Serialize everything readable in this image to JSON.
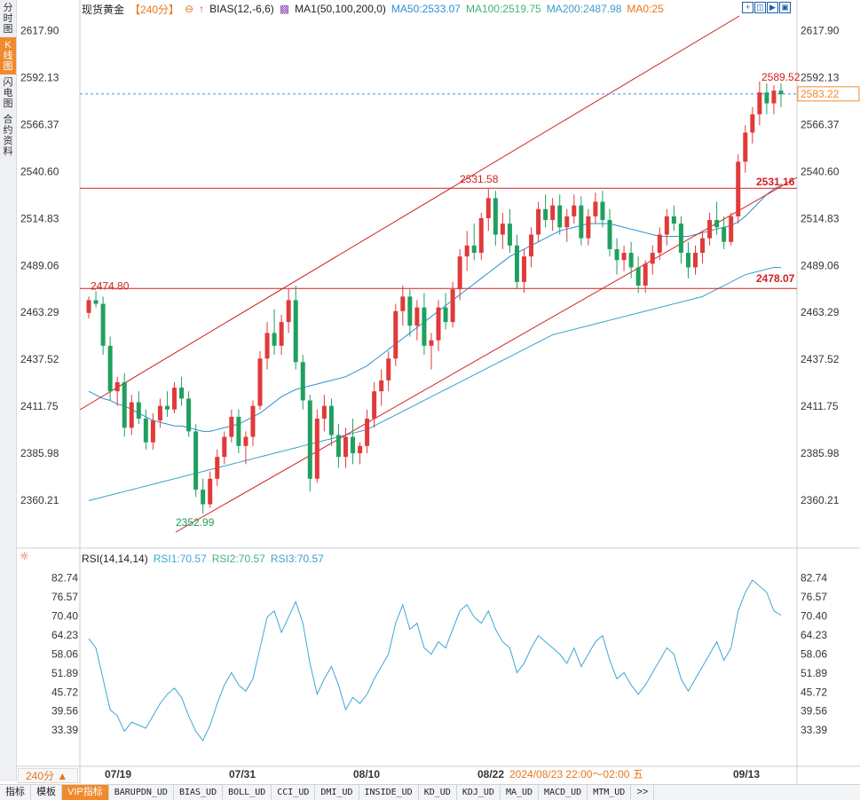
{
  "sidebar": {
    "items": [
      {
        "label": "分时图",
        "active": false
      },
      {
        "label": "K线图",
        "active": true
      },
      {
        "label": "闪电图",
        "active": false
      },
      {
        "label": "合约资料",
        "active": false
      }
    ]
  },
  "header": {
    "instrument": "现货黄金",
    "period_tag": "【240分】",
    "bias_label": "BIAS(12,-6,6)",
    "ma_label": "MA1(50,100,200,0)",
    "ma50": "MA50:2533.07",
    "ma100": "MA100:2519.75",
    "ma200": "MA200:2487.98",
    "ma0": "MA0:25"
  },
  "colors": {
    "up": "#e03a3a",
    "down": "#20a060",
    "ma50": "#2e8fd0",
    "ma100": "#41b37a",
    "ma200": "#3aa0c8",
    "rsi": "#3fa6d6",
    "lines": "#d22020",
    "price": "#f08a2c"
  },
  "axes": {
    "price_ticks": [
      "2617.90",
      "2592.13",
      "2566.37",
      "2540.60",
      "2514.83",
      "2489.06",
      "2463.29",
      "2437.52",
      "2411.75",
      "2385.98",
      "2360.21"
    ],
    "current_price": "2583.22",
    "rsi_ticks": [
      "82.74",
      "76.57",
      "70.40",
      "64.23",
      "58.06",
      "51.89",
      "45.72",
      "39.56",
      "33.39"
    ],
    "date_labels": [
      "07/19",
      "07/31",
      "08/10",
      "08/22",
      "09/13"
    ],
    "crosshair_time": "2024/08/23 22:00～02:00 五"
  },
  "annotations": {
    "high": "2589.52",
    "low": "2352.99",
    "resist1": "2531.58",
    "resist1_right": "2531.16",
    "support_left": "2474.80",
    "support_right": "2478.07"
  },
  "rsi_header": {
    "label": "RSI(14,14,14)",
    "rsi1": "RSI1:70.57",
    "rsi2": "RSI2:70.57",
    "rsi3": "RSI3:70.57"
  },
  "period_selector": "240分 ▲",
  "bottom_tabs": [
    "指标",
    "模板",
    "VIP指标",
    "BARUPDN_UD",
    "BIAS_UD",
    "BOLL_UD",
    "CCI_UD",
    "DMI_UD",
    "INSIDE_UD",
    "KD_UD",
    "KDJ_UD",
    "MA_UD",
    "MACD_UD",
    "MTM_UD",
    ">>"
  ],
  "chart_data": {
    "type": "candlestick",
    "price_range": [
      2350,
      2625
    ],
    "rsi_range": [
      28,
      86
    ],
    "candles": [
      [
        2463,
        2472,
        2460,
        2470
      ],
      [
        2470,
        2475,
        2466,
        2468
      ],
      [
        2468,
        2472,
        2440,
        2445
      ],
      [
        2445,
        2450,
        2415,
        2420
      ],
      [
        2420,
        2428,
        2412,
        2425
      ],
      [
        2425,
        2430,
        2395,
        2400
      ],
      [
        2400,
        2418,
        2396,
        2414
      ],
      [
        2414,
        2420,
        2402,
        2405
      ],
      [
        2405,
        2410,
        2388,
        2392
      ],
      [
        2392,
        2408,
        2388,
        2404
      ],
      [
        2404,
        2416,
        2400,
        2412
      ],
      [
        2412,
        2420,
        2406,
        2410
      ],
      [
        2410,
        2425,
        2408,
        2422
      ],
      [
        2422,
        2428,
        2412,
        2416
      ],
      [
        2416,
        2420,
        2395,
        2398
      ],
      [
        2398,
        2402,
        2362,
        2366
      ],
      [
        2366,
        2372,
        2353,
        2358
      ],
      [
        2358,
        2376,
        2356,
        2372
      ],
      [
        2372,
        2388,
        2368,
        2384
      ],
      [
        2384,
        2398,
        2380,
        2395
      ],
      [
        2395,
        2410,
        2392,
        2406
      ],
      [
        2406,
        2410,
        2386,
        2390
      ],
      [
        2390,
        2398,
        2380,
        2395
      ],
      [
        2395,
        2415,
        2390,
        2412
      ],
      [
        2412,
        2442,
        2410,
        2438
      ],
      [
        2438,
        2458,
        2432,
        2452
      ],
      [
        2452,
        2465,
        2440,
        2445
      ],
      [
        2445,
        2462,
        2440,
        2458
      ],
      [
        2458,
        2476,
        2452,
        2470
      ],
      [
        2470,
        2478,
        2432,
        2436
      ],
      [
        2436,
        2440,
        2410,
        2415
      ],
      [
        2415,
        2418,
        2365,
        2372
      ],
      [
        2372,
        2410,
        2370,
        2405
      ],
      [
        2405,
        2418,
        2398,
        2412
      ],
      [
        2412,
        2416,
        2390,
        2396
      ],
      [
        2396,
        2402,
        2378,
        2384
      ],
      [
        2384,
        2400,
        2378,
        2395
      ],
      [
        2395,
        2405,
        2380,
        2386
      ],
      [
        2386,
        2392,
        2380,
        2390
      ],
      [
        2390,
        2410,
        2386,
        2405
      ],
      [
        2405,
        2425,
        2400,
        2420
      ],
      [
        2420,
        2432,
        2412,
        2426
      ],
      [
        2426,
        2442,
        2420,
        2438
      ],
      [
        2438,
        2468,
        2434,
        2464
      ],
      [
        2464,
        2478,
        2456,
        2472
      ],
      [
        2472,
        2476,
        2450,
        2456
      ],
      [
        2456,
        2470,
        2448,
        2466
      ],
      [
        2466,
        2474,
        2440,
        2445
      ],
      [
        2445,
        2452,
        2432,
        2448
      ],
      [
        2448,
        2470,
        2442,
        2466
      ],
      [
        2466,
        2474,
        2454,
        2458
      ],
      [
        2458,
        2480,
        2455,
        2476
      ],
      [
        2476,
        2498,
        2470,
        2494
      ],
      [
        2494,
        2508,
        2486,
        2500
      ],
      [
        2500,
        2512,
        2492,
        2496
      ],
      [
        2496,
        2518,
        2492,
        2515
      ],
      [
        2515,
        2531,
        2508,
        2526
      ],
      [
        2526,
        2530,
        2500,
        2506
      ],
      [
        2506,
        2518,
        2498,
        2512
      ],
      [
        2512,
        2520,
        2496,
        2500
      ],
      [
        2500,
        2506,
        2476,
        2480
      ],
      [
        2480,
        2498,
        2474,
        2494
      ],
      [
        2494,
        2510,
        2488,
        2506
      ],
      [
        2506,
        2524,
        2502,
        2520
      ],
      [
        2520,
        2528,
        2510,
        2514
      ],
      [
        2514,
        2526,
        2508,
        2522
      ],
      [
        2522,
        2528,
        2506,
        2510
      ],
      [
        2510,
        2520,
        2502,
        2516
      ],
      [
        2516,
        2528,
        2512,
        2522
      ],
      [
        2522,
        2527,
        2500,
        2504
      ],
      [
        2504,
        2520,
        2500,
        2516
      ],
      [
        2516,
        2529,
        2512,
        2524
      ],
      [
        2524,
        2530,
        2510,
        2514
      ],
      [
        2514,
        2520,
        2494,
        2498
      ],
      [
        2498,
        2504,
        2484,
        2492
      ],
      [
        2492,
        2500,
        2486,
        2496
      ],
      [
        2496,
        2502,
        2482,
        2488
      ],
      [
        2488,
        2494,
        2474,
        2478
      ],
      [
        2478,
        2492,
        2474,
        2490
      ],
      [
        2490,
        2500,
        2484,
        2496
      ],
      [
        2496,
        2510,
        2492,
        2506
      ],
      [
        2506,
        2520,
        2500,
        2516
      ],
      [
        2516,
        2522,
        2508,
        2512
      ],
      [
        2512,
        2516,
        2490,
        2496
      ],
      [
        2496,
        2502,
        2482,
        2488
      ],
      [
        2488,
        2500,
        2484,
        2496
      ],
      [
        2496,
        2508,
        2490,
        2504
      ],
      [
        2504,
        2518,
        2500,
        2514
      ],
      [
        2514,
        2524,
        2506,
        2510
      ],
      [
        2510,
        2516,
        2498,
        2502
      ],
      [
        2502,
        2518,
        2500,
        2516
      ],
      [
        2516,
        2550,
        2512,
        2546
      ],
      [
        2546,
        2566,
        2540,
        2562
      ],
      [
        2562,
        2576,
        2556,
        2572
      ],
      [
        2572,
        2590,
        2566,
        2584
      ],
      [
        2584,
        2589,
        2572,
        2578
      ],
      [
        2578,
        2588,
        2572,
        2585
      ],
      [
        2585,
        2589,
        2576,
        2583
      ]
    ],
    "ma50": [
      2420,
      2418,
      2416,
      2415,
      2413,
      2412,
      2410,
      2408,
      2406,
      2404,
      2403,
      2402,
      2401,
      2401,
      2400,
      2399,
      2398,
      2398,
      2399,
      2400,
      2401,
      2402,
      2404,
      2406,
      2408,
      2411,
      2414,
      2417,
      2419,
      2421,
      2422,
      2423,
      2424,
      2425,
      2426,
      2427,
      2428,
      2430,
      2432,
      2434,
      2437,
      2440,
      2443,
      2446,
      2449,
      2452,
      2455,
      2458,
      2461,
      2464,
      2467,
      2470,
      2473,
      2476,
      2479,
      2482,
      2485,
      2488,
      2491,
      2494,
      2496,
      2498,
      2500,
      2502,
      2504,
      2506,
      2508,
      2509,
      2510,
      2511,
      2512,
      2512,
      2512,
      2512,
      2511,
      2510,
      2509,
      2508,
      2507,
      2506,
      2505,
      2505,
      2505,
      2505,
      2505,
      2506,
      2507,
      2508,
      2509,
      2510,
      2511,
      2513,
      2516,
      2520,
      2524,
      2528,
      2531,
      2533
    ],
    "ma200": [
      2360,
      2361,
      2362,
      2363,
      2364,
      2365,
      2366,
      2367,
      2368,
      2369,
      2370,
      2371,
      2372,
      2373,
      2374,
      2375,
      2376,
      2377,
      2378,
      2379,
      2380,
      2381,
      2382,
      2383,
      2384,
      2385,
      2386,
      2387,
      2388,
      2389,
      2390,
      2391,
      2392,
      2393,
      2394,
      2395,
      2396,
      2397,
      2398,
      2399,
      2401,
      2403,
      2405,
      2407,
      2409,
      2411,
      2413,
      2415,
      2417,
      2419,
      2421,
      2423,
      2425,
      2427,
      2429,
      2431,
      2433,
      2435,
      2437,
      2439,
      2441,
      2443,
      2445,
      2447,
      2449,
      2451,
      2452,
      2453,
      2454,
      2455,
      2456,
      2457,
      2458,
      2459,
      2460,
      2461,
      2462,
      2463,
      2464,
      2465,
      2466,
      2467,
      2468,
      2469,
      2470,
      2471,
      2472,
      2474,
      2476,
      2478,
      2480,
      2482,
      2484,
      2485,
      2486,
      2487,
      2488,
      2488
    ],
    "rsi": [
      63,
      60,
      50,
      40,
      38,
      33,
      36,
      35,
      34,
      38,
      42,
      45,
      47,
      44,
      38,
      33,
      30,
      35,
      42,
      48,
      52,
      48,
      46,
      50,
      60,
      70,
      72,
      65,
      70,
      75,
      68,
      55,
      45,
      50,
      54,
      48,
      40,
      44,
      42,
      45,
      50,
      54,
      58,
      68,
      74,
      66,
      68,
      60,
      58,
      62,
      60,
      66,
      72,
      74,
      70,
      68,
      72,
      66,
      62,
      60,
      52,
      55,
      60,
      64,
      62,
      60,
      58,
      55,
      60,
      54,
      58,
      62,
      64,
      56,
      50,
      52,
      48,
      45,
      48,
      52,
      56,
      60,
      58,
      50,
      46,
      50,
      54,
      58,
      62,
      56,
      60,
      72,
      78,
      82,
      80,
      78,
      72,
      70.57
    ]
  }
}
